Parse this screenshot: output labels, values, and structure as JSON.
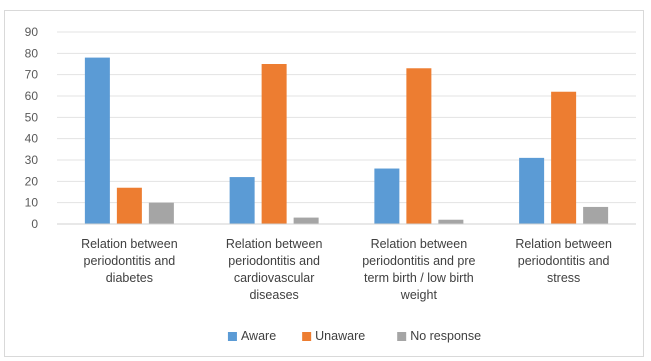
{
  "chart_data": {
    "type": "bar",
    "categories": [
      [
        "Relation between",
        "periodontitis and",
        "diabetes"
      ],
      [
        "Relation between",
        "periodontitis and",
        "cardiovascular",
        "diseases"
      ],
      [
        "Relation between",
        "periodontitis and pre",
        "term birth / low birth",
        "weight"
      ],
      [
        "Relation between",
        "periodontitis and",
        "stress"
      ]
    ],
    "series": [
      {
        "name": "Aware",
        "color": "#5b9bd5",
        "values": [
          78,
          22,
          26,
          31
        ]
      },
      {
        "name": "Unaware",
        "color": "#ed7d31",
        "values": [
          17,
          75,
          73,
          62
        ]
      },
      {
        "name": "No response",
        "color": "#a5a5a5",
        "values": [
          10,
          3,
          2,
          8
        ]
      }
    ],
    "ylim": [
      0,
      90
    ],
    "yticks": [
      0,
      10,
      20,
      30,
      40,
      50,
      60,
      70,
      80,
      90
    ],
    "grid": true,
    "legend": "bottom"
  }
}
